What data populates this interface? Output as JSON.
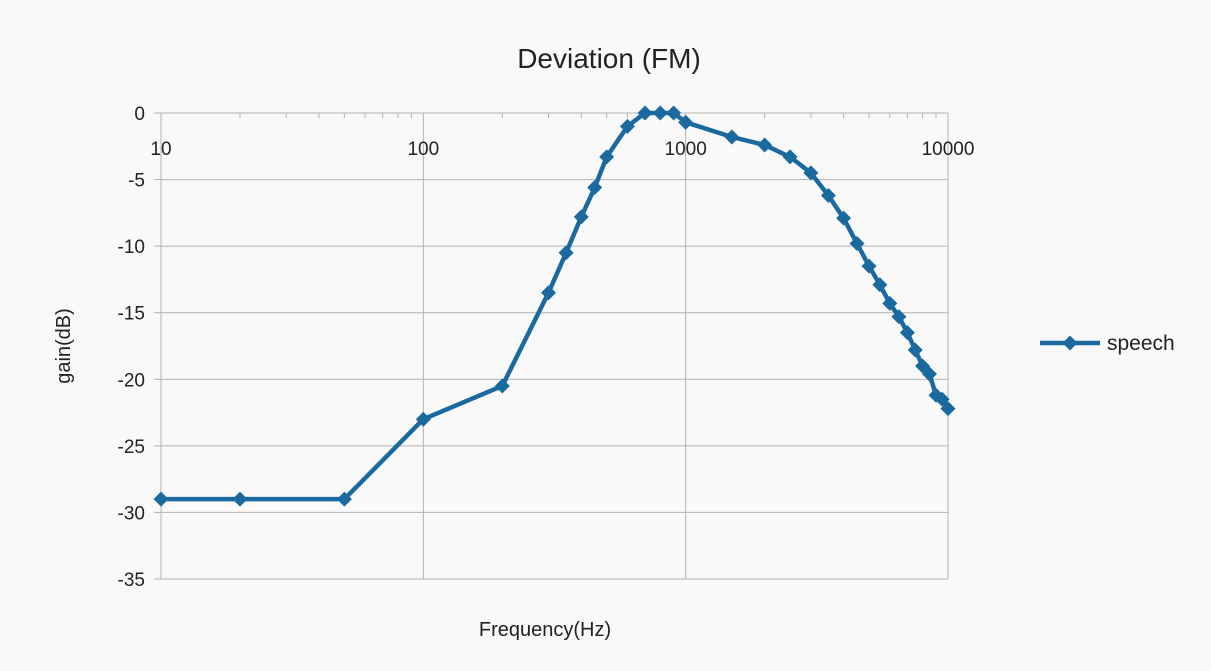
{
  "chart_data": {
    "type": "line",
    "title": "Deviation (FM)",
    "xlabel": "Frequency(Hz)",
    "ylabel": "gain(dB)",
    "xscale": "log",
    "xlim": [
      10,
      10000
    ],
    "ylim": [
      -35,
      0
    ],
    "x_ticks": [
      "10",
      "100",
      "1000",
      "10000"
    ],
    "y_ticks": [
      "0",
      "-5",
      "-10",
      "-15",
      "-20",
      "-25",
      "-30",
      "-35"
    ],
    "grid": true,
    "legend": "right",
    "series": [
      {
        "name": "speech",
        "color": "#1a6aa0",
        "marker": "diamond",
        "points": [
          [
            10,
            -29
          ],
          [
            20,
            -29
          ],
          [
            50,
            -29
          ],
          [
            100,
            -23
          ],
          [
            200,
            -20.5
          ],
          [
            300,
            -13.5
          ],
          [
            350,
            -10.5
          ],
          [
            400,
            -7.8
          ],
          [
            450,
            -5.6
          ],
          [
            500,
            -3.3
          ],
          [
            600,
            -1
          ],
          [
            700,
            0
          ],
          [
            800,
            0
          ],
          [
            900,
            0
          ],
          [
            1000,
            -0.7
          ],
          [
            1500,
            -1.8
          ],
          [
            2000,
            -2.4
          ],
          [
            2500,
            -3.3
          ],
          [
            3000,
            -4.5
          ],
          [
            3500,
            -6.2
          ],
          [
            4000,
            -7.9
          ],
          [
            4500,
            -9.8
          ],
          [
            5000,
            -11.5
          ],
          [
            5500,
            -12.9
          ],
          [
            6000,
            -14.3
          ],
          [
            6500,
            -15.3
          ],
          [
            7000,
            -16.5
          ],
          [
            7500,
            -17.8
          ],
          [
            8000,
            -19
          ],
          [
            8500,
            -19.6
          ],
          [
            9000,
            -21.2
          ],
          [
            9500,
            -21.5
          ],
          [
            10000,
            -22.2
          ]
        ]
      }
    ]
  }
}
